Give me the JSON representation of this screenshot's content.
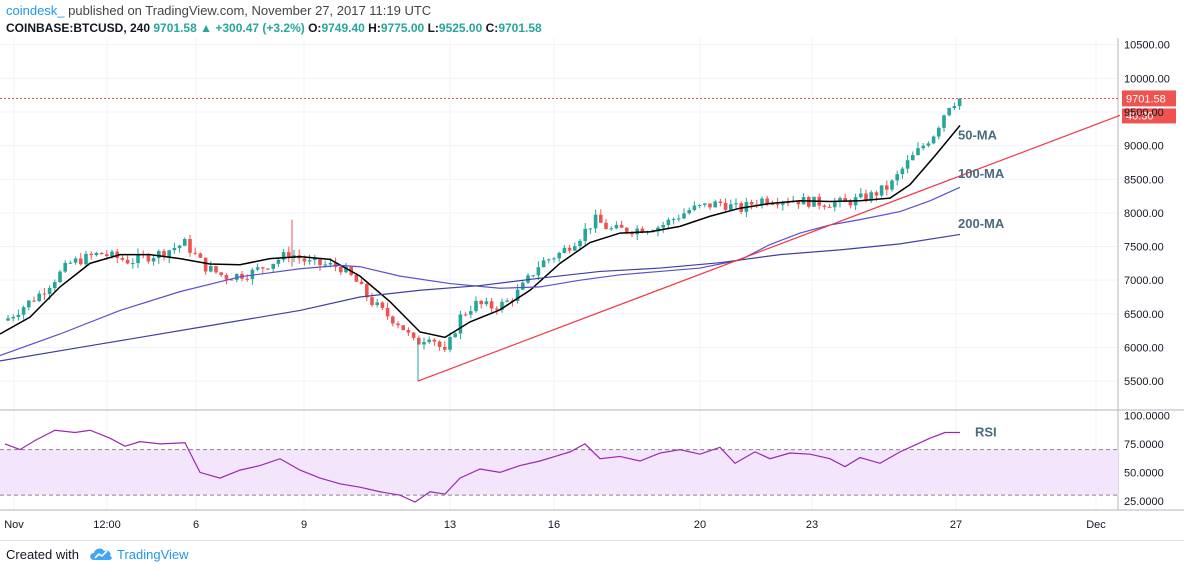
{
  "header": {
    "brand": "coindesk_",
    "published": "published on TradingView.com, November 27, 2017 11:19 UTC",
    "symbol": "COINBASE:BTCUSD, 240",
    "last": "9701.58",
    "change": "+300.47 (+3.2%)",
    "o_label": "O:",
    "o_val": "9749.40",
    "h_label": "H:",
    "h_val": "9775.00",
    "l_label": "L:",
    "l_val": "9525.00",
    "c_label": "C:",
    "c_val": "9701.58"
  },
  "footer": {
    "created_with": "Created with",
    "brand": "TradingView"
  },
  "colors": {
    "up": "#26a69a",
    "down": "#ef5350",
    "ma50": "#000000",
    "ma100": "#5b4fcf",
    "ma200": "#3f3fa0",
    "trend": "#f23645",
    "rsi": "#9c27b0",
    "rsi_band": "#f3e5fb"
  },
  "chart_data": [
    {
      "type": "candlestick",
      "title": "COINBASE:BTCUSD, 240",
      "ylim": [
        5100,
        10600
      ],
      "y_ticks": [
        "10500.00",
        "10000.00",
        "9500.00",
        "9000.00",
        "8500.00",
        "8000.00",
        "7500.00",
        "7000.00",
        "6500.00",
        "6000.00",
        "5500.00"
      ],
      "x_ticks": [
        "Nov",
        "12:00",
        "6",
        "9",
        "13",
        "16",
        "20",
        "23",
        "27",
        "Dec"
      ],
      "last_price": "9701.58",
      "countdown": "40:30",
      "series": [
        {
          "name": "50-MA",
          "values": [
            [
              0,
              6200
            ],
            [
              30,
              6450
            ],
            [
              60,
              6900
            ],
            [
              90,
              7250
            ],
            [
              120,
              7380
            ],
            [
              150,
              7380
            ],
            [
              180,
              7320
            ],
            [
              210,
              7240
            ],
            [
              240,
              7230
            ],
            [
              270,
              7320
            ],
            [
              300,
              7350
            ],
            [
              330,
              7310
            ],
            [
              360,
              7060
            ],
            [
              390,
              6680
            ],
            [
              420,
              6230
            ],
            [
              445,
              6150
            ],
            [
              470,
              6380
            ],
            [
              500,
              6560
            ],
            [
              530,
              6850
            ],
            [
              560,
              7250
            ],
            [
              590,
              7560
            ],
            [
              620,
              7700
            ],
            [
              650,
              7720
            ],
            [
              680,
              7800
            ],
            [
              710,
              7950
            ],
            [
              740,
              8070
            ],
            [
              770,
              8140
            ],
            [
              800,
              8180
            ],
            [
              830,
              8170
            ],
            [
              860,
              8180
            ],
            [
              890,
              8220
            ],
            [
              910,
              8420
            ],
            [
              935,
              8850
            ],
            [
              960,
              9300
            ]
          ]
        },
        {
          "name": "100-MA",
          "values": [
            [
              0,
              5880
            ],
            [
              60,
              6200
            ],
            [
              120,
              6550
            ],
            [
              180,
              6830
            ],
            [
              240,
              7050
            ],
            [
              300,
              7170
            ],
            [
              340,
              7220
            ],
            [
              360,
              7200
            ],
            [
              400,
              7060
            ],
            [
              450,
              6950
            ],
            [
              500,
              6880
            ],
            [
              540,
              6900
            ],
            [
              580,
              7000
            ],
            [
              620,
              7080
            ],
            [
              660,
              7130
            ],
            [
              700,
              7180
            ],
            [
              740,
              7300
            ],
            [
              770,
              7530
            ],
            [
              800,
              7700
            ],
            [
              830,
              7820
            ],
            [
              860,
              7900
            ],
            [
              900,
              8020
            ],
            [
              930,
              8180
            ],
            [
              960,
              8380
            ]
          ]
        },
        {
          "name": "200-MA",
          "values": [
            [
              0,
              5800
            ],
            [
              100,
              6050
            ],
            [
              200,
              6300
            ],
            [
              300,
              6550
            ],
            [
              360,
              6750
            ],
            [
              420,
              6850
            ],
            [
              480,
              6920
            ],
            [
              540,
              7030
            ],
            [
              600,
              7130
            ],
            [
              660,
              7180
            ],
            [
              720,
              7260
            ],
            [
              780,
              7380
            ],
            [
              840,
              7450
            ],
            [
              900,
              7540
            ],
            [
              960,
              7680
            ]
          ]
        },
        {
          "name": "",
          "values": [
            [
              418,
              5500
            ],
            [
              1120,
              9450
            ]
          ]
        }
      ]
    },
    {
      "type": "line",
      "title": "RSI",
      "ylim": [
        17,
        103
      ],
      "y_ticks": [
        "100.0000",
        "75.0000",
        "50.0000",
        "25.0000"
      ],
      "band": [
        30,
        70
      ],
      "series": [
        {
          "name": "RSI",
          "values": [
            [
              5,
              75
            ],
            [
              20,
              70
            ],
            [
              35,
              78
            ],
            [
              55,
              87
            ],
            [
              75,
              85
            ],
            [
              90,
              87
            ],
            [
              110,
              80
            ],
            [
              125,
              73
            ],
            [
              140,
              77
            ],
            [
              160,
              75
            ],
            [
              185,
              76
            ],
            [
              200,
              50
            ],
            [
              220,
              45
            ],
            [
              240,
              52
            ],
            [
              260,
              56
            ],
            [
              280,
              62
            ],
            [
              300,
              52
            ],
            [
              320,
              45
            ],
            [
              340,
              40
            ],
            [
              360,
              37
            ],
            [
              380,
              33
            ],
            [
              400,
              30
            ],
            [
              415,
              24
            ],
            [
              430,
              33
            ],
            [
              445,
              31
            ],
            [
              460,
              45
            ],
            [
              480,
              53
            ],
            [
              500,
              50
            ],
            [
              520,
              56
            ],
            [
              540,
              60
            ],
            [
              555,
              64
            ],
            [
              570,
              68
            ],
            [
              585,
              75
            ],
            [
              600,
              62
            ],
            [
              620,
              64
            ],
            [
              640,
              60
            ],
            [
              660,
              67
            ],
            [
              680,
              70
            ],
            [
              700,
              66
            ],
            [
              720,
              72
            ],
            [
              735,
              58
            ],
            [
              755,
              68
            ],
            [
              770,
              62
            ],
            [
              790,
              67
            ],
            [
              810,
              66
            ],
            [
              830,
              62
            ],
            [
              845,
              55
            ],
            [
              860,
              63
            ],
            [
              880,
              58
            ],
            [
              900,
              68
            ],
            [
              915,
              74
            ],
            [
              930,
              80
            ],
            [
              945,
              85
            ],
            [
              960,
              85
            ]
          ]
        }
      ]
    }
  ]
}
